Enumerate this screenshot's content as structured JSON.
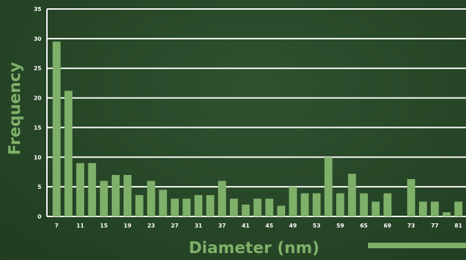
{
  "chart_data": {
    "type": "bar",
    "xlabel": "Diameter (nm)",
    "ylabel": "Frequency",
    "ylim": [
      0,
      35
    ],
    "yticks": [
      0,
      5,
      10,
      15,
      20,
      25,
      30,
      35
    ],
    "grid": true,
    "bar_color": "#7fb06a",
    "grid_color": "#ffffff",
    "categories": [
      "7",
      "9",
      "11",
      "13",
      "15",
      "17",
      "19",
      "21",
      "23",
      "25",
      "27",
      "29",
      "31",
      "33",
      "37",
      "39",
      "41",
      "43",
      "45",
      "47",
      "49",
      "51",
      "53",
      "55",
      "59",
      "61",
      "65",
      "67",
      "69",
      "71",
      "73",
      "75",
      "77",
      "79",
      "81"
    ],
    "tick_labels": [
      "7",
      "11",
      "15",
      "19",
      "23",
      "27",
      "31",
      "37",
      "41",
      "45",
      "49",
      "53",
      "59",
      "65",
      "69",
      "73",
      "77",
      "81"
    ],
    "values": [
      29.5,
      21.2,
      9.0,
      9.0,
      6.0,
      7.0,
      7.0,
      3.6,
      6.0,
      4.5,
      3.0,
      3.0,
      3.6,
      3.6,
      6.0,
      3.0,
      2.0,
      3.0,
      3.0,
      1.8,
      5.0,
      3.9,
      3.9,
      10.0,
      3.9,
      7.2,
      3.9,
      2.5,
      3.9,
      0,
      6.3,
      2.5,
      2.5,
      0.7,
      2.5
    ]
  }
}
